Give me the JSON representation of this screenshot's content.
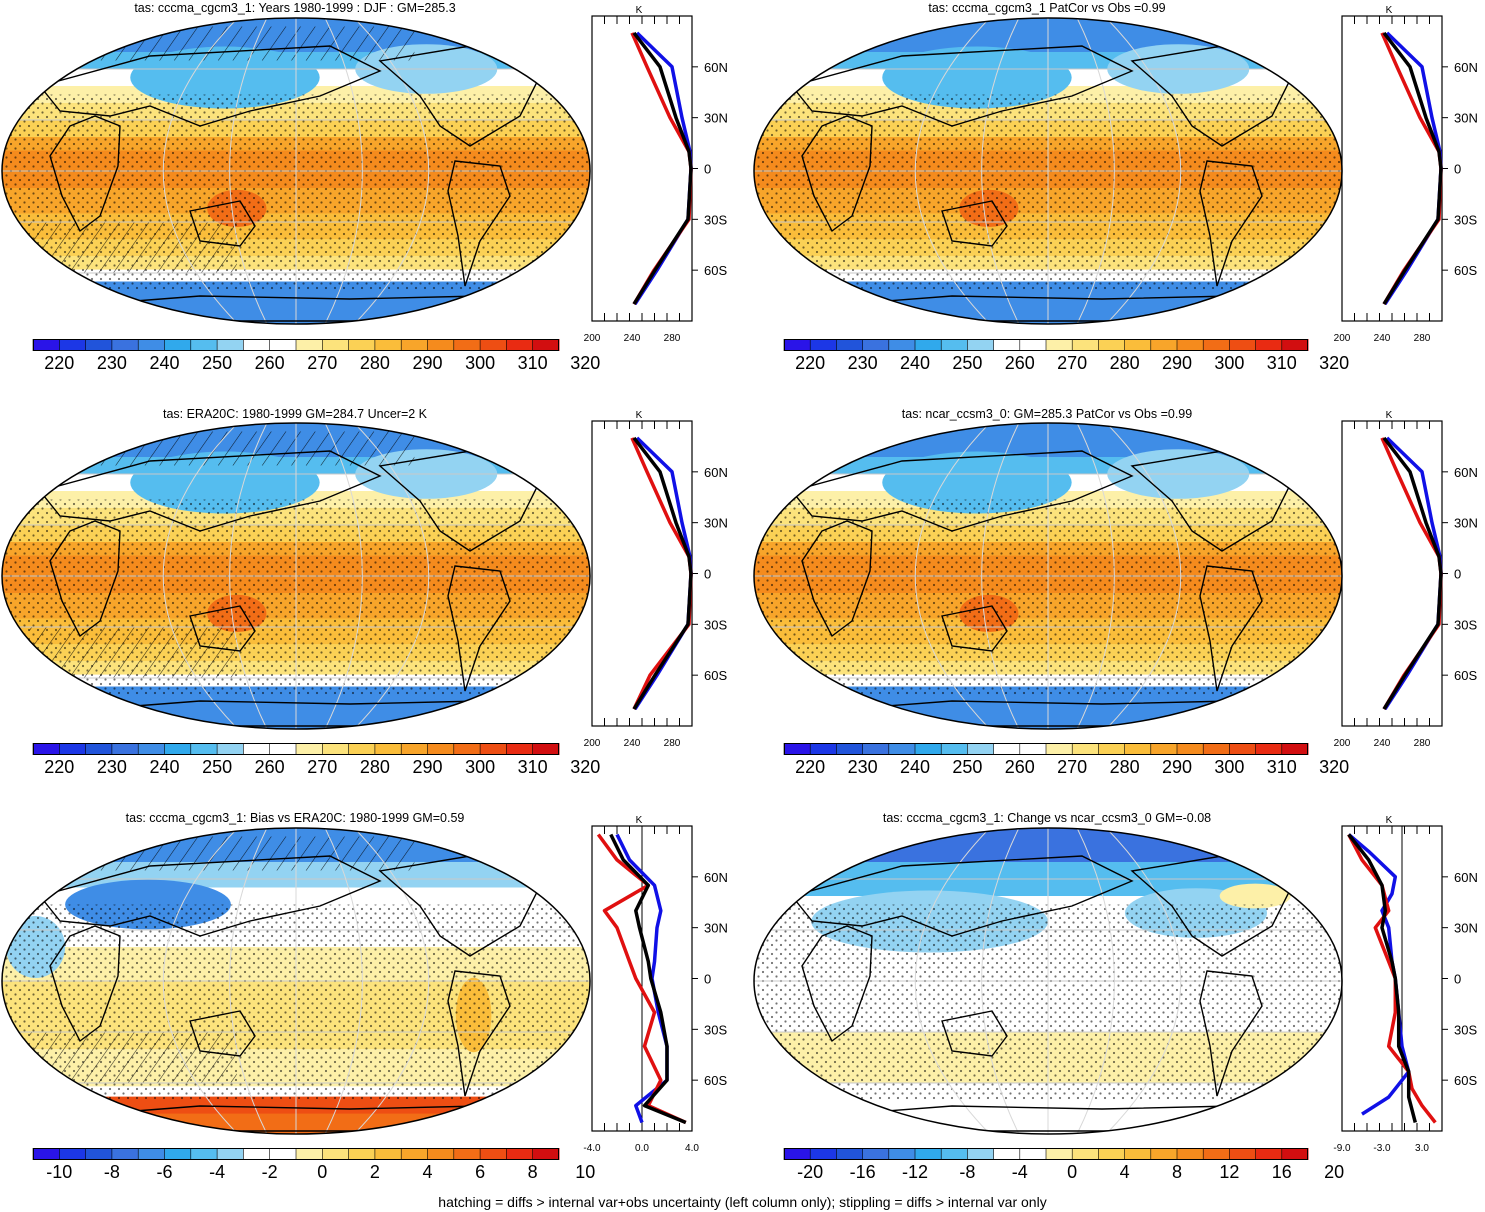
{
  "footer": "hatching = diffs > internal var+obs uncertainty (left column only); stippling = diffs > internal var only",
  "colors": {
    "abs_scale": [
      "#2a14e8",
      "#1c37e6",
      "#2154da",
      "#3a72df",
      "#3f8de6",
      "#30a9ec",
      "#55bdef",
      "#93d3f2",
      "#ffffff",
      "#ffffff",
      "#fdf0a8",
      "#fce37c",
      "#fbd155",
      "#fabd3a",
      "#f8a52a",
      "#f58b1d",
      "#f26d16",
      "#ee4e13",
      "#e92b12",
      "#d20e10"
    ],
    "bias_scale": [
      "#2a14e8",
      "#1c37e6",
      "#2154da",
      "#3a72df",
      "#3f8de6",
      "#30a9ec",
      "#55bdef",
      "#93d3f2",
      "#ffffff",
      "#ffffff",
      "#fdf0a8",
      "#fce37c",
      "#fbd155",
      "#fabd3a",
      "#f8a52a",
      "#f58b1d",
      "#f26d16",
      "#ee4e13",
      "#e92b12",
      "#d20e10"
    ],
    "model_line": "#e01010",
    "obs_line": "#1010e6",
    "mean_line": "#000000"
  },
  "panels": [
    {
      "title": "tas: cccma_cgcm3_1: Years 1980-1999 : DJF : GM=285.3",
      "colorbar_labels": [
        "220",
        "230",
        "240",
        "250",
        "260",
        "270",
        "280",
        "290",
        "300",
        "310",
        "320"
      ],
      "zonal": {
        "unit": "K",
        "xticks": [
          "200",
          "240",
          "280"
        ],
        "xrange": [
          200,
          300
        ],
        "lat_labels": [
          "60N",
          "30N",
          "0",
          "30S",
          "60S"
        ],
        "lines": {
          "red": [
            [
              80,
              240
            ],
            [
              60,
              255
            ],
            [
              30,
              278
            ],
            [
              10,
              297
            ],
            [
              0,
              299
            ],
            [
              -30,
              297
            ],
            [
              -60,
              262
            ],
            [
              -80,
              242
            ]
          ],
          "blue": [
            [
              80,
              245
            ],
            [
              60,
              280
            ],
            [
              30,
              290
            ],
            [
              10,
              298
            ],
            [
              0,
              299
            ],
            [
              -30,
              296
            ],
            [
              -60,
              265
            ],
            [
              -80,
              243
            ]
          ],
          "black": [
            [
              80,
              242
            ],
            [
              60,
              268
            ],
            [
              30,
              284
            ],
            [
              10,
              297
            ],
            [
              0,
              299
            ],
            [
              -30,
              296
            ],
            [
              -60,
              263
            ],
            [
              -80,
              242
            ]
          ]
        }
      }
    },
    {
      "title": "tas: cccma_cgcm3_1 PatCor vs Obs =0.99",
      "colorbar_labels": [
        "220",
        "230",
        "240",
        "250",
        "260",
        "270",
        "280",
        "290",
        "300",
        "310",
        "320"
      ],
      "zonal": {
        "unit": "K",
        "xticks": [
          "200",
          "240",
          "280"
        ],
        "xrange": [
          200,
          300
        ],
        "lat_labels": [
          "60N",
          "30N",
          "0",
          "30S",
          "60S"
        ],
        "lines": {
          "red": [
            [
              80,
              240
            ],
            [
              60,
              255
            ],
            [
              30,
              278
            ],
            [
              10,
              297
            ],
            [
              0,
              299
            ],
            [
              -30,
              297
            ],
            [
              -60,
              262
            ],
            [
              -80,
              242
            ]
          ],
          "blue": [
            [
              80,
              245
            ],
            [
              60,
              280
            ],
            [
              30,
              290
            ],
            [
              10,
              298
            ],
            [
              0,
              299
            ],
            [
              -30,
              296
            ],
            [
              -60,
              265
            ],
            [
              -80,
              243
            ]
          ],
          "black": [
            [
              80,
              242
            ],
            [
              60,
              268
            ],
            [
              30,
              284
            ],
            [
              10,
              297
            ],
            [
              0,
              299
            ],
            [
              -30,
              296
            ],
            [
              -60,
              263
            ],
            [
              -80,
              242
            ]
          ]
        }
      }
    },
    {
      "title": "tas: ERA20C: 1980-1999 GM=284.7 Uncer=2 K",
      "colorbar_labels": [
        "220",
        "230",
        "240",
        "250",
        "260",
        "270",
        "280",
        "290",
        "300",
        "310",
        "320"
      ],
      "zonal": {
        "unit": "K",
        "xticks": [
          "200",
          "240",
          "280"
        ],
        "xrange": [
          200,
          300
        ],
        "lat_labels": [
          "60N",
          "30N",
          "0",
          "30S",
          "60S"
        ],
        "lines": {
          "red": [
            [
              80,
              240
            ],
            [
              60,
              255
            ],
            [
              30,
              278
            ],
            [
              10,
              297
            ],
            [
              0,
              299
            ],
            [
              -30,
              297
            ],
            [
              -60,
              258
            ],
            [
              -80,
              242
            ]
          ],
          "blue": [
            [
              80,
              245
            ],
            [
              60,
              280
            ],
            [
              30,
              290
            ],
            [
              10,
              298
            ],
            [
              0,
              299
            ],
            [
              -30,
              296
            ],
            [
              -60,
              265
            ],
            [
              -80,
              243
            ]
          ],
          "black": [
            [
              80,
              242
            ],
            [
              60,
              268
            ],
            [
              30,
              284
            ],
            [
              10,
              297
            ],
            [
              0,
              299
            ],
            [
              -30,
              296
            ],
            [
              -60,
              263
            ],
            [
              -80,
              242
            ]
          ]
        }
      }
    },
    {
      "title": "tas: ncar_ccsm3_0: GM=285.3 PatCor vs Obs =0.99",
      "colorbar_labels": [
        "220",
        "230",
        "240",
        "250",
        "260",
        "270",
        "280",
        "290",
        "300",
        "310",
        "320"
      ],
      "zonal": {
        "unit": "K",
        "xticks": [
          "200",
          "240",
          "280"
        ],
        "xrange": [
          200,
          300
        ],
        "lat_labels": [
          "60N",
          "30N",
          "0",
          "30S",
          "60S"
        ],
        "lines": {
          "red": [
            [
              80,
              240
            ],
            [
              60,
              255
            ],
            [
              30,
              278
            ],
            [
              10,
              297
            ],
            [
              0,
              299
            ],
            [
              -30,
              297
            ],
            [
              -60,
              262
            ],
            [
              -80,
              242
            ]
          ],
          "blue": [
            [
              80,
              245
            ],
            [
              60,
              280
            ],
            [
              30,
              290
            ],
            [
              10,
              298
            ],
            [
              0,
              299
            ],
            [
              -30,
              296
            ],
            [
              -60,
              265
            ],
            [
              -80,
              243
            ]
          ],
          "black": [
            [
              80,
              242
            ],
            [
              60,
              268
            ],
            [
              30,
              284
            ],
            [
              10,
              297
            ],
            [
              0,
              299
            ],
            [
              -30,
              296
            ],
            [
              -60,
              263
            ],
            [
              -80,
              242
            ]
          ]
        }
      }
    },
    {
      "title": "tas: cccma_cgcm3_1: Bias vs ERA20C: 1980-1999 GM=0.59",
      "colorbar_labels": [
        "-10",
        "-8",
        "-6",
        "-4",
        "-2",
        "0",
        "2",
        "4",
        "6",
        "8",
        "10"
      ],
      "zonal": {
        "unit": "K",
        "xticks": [
          "-4.0",
          "0.0",
          "4.0"
        ],
        "xrange": [
          -4,
          4
        ],
        "lat_labels": [
          "60N",
          "30N",
          "0",
          "30S",
          "60S"
        ],
        "lines": {
          "red": [
            [
              85,
              -3.5
            ],
            [
              70,
              -2
            ],
            [
              55,
              0.5
            ],
            [
              40,
              -3
            ],
            [
              30,
              -2
            ],
            [
              10,
              -1
            ],
            [
              0,
              -0.5
            ],
            [
              -20,
              1
            ],
            [
              -40,
              0.2
            ],
            [
              -60,
              1.5
            ],
            [
              -75,
              0.5
            ],
            [
              -85,
              3.5
            ]
          ],
          "blue": [
            [
              85,
              -2
            ],
            [
              70,
              -1
            ],
            [
              55,
              1
            ],
            [
              40,
              1.5
            ],
            [
              30,
              1.2
            ],
            [
              10,
              1
            ],
            [
              0,
              0.8
            ],
            [
              -20,
              1.3
            ],
            [
              -40,
              2
            ],
            [
              -60,
              2
            ],
            [
              -75,
              -0.5
            ],
            [
              -85,
              0
            ]
          ],
          "black": [
            [
              85,
              -2.5
            ],
            [
              70,
              -1.5
            ],
            [
              55,
              0.5
            ],
            [
              40,
              -0.5
            ],
            [
              30,
              -0.2
            ],
            [
              10,
              0.5
            ],
            [
              0,
              0.7
            ],
            [
              -20,
              1.5
            ],
            [
              -40,
              2
            ],
            [
              -60,
              2
            ],
            [
              -75,
              0.2
            ],
            [
              -85,
              3.5
            ]
          ]
        }
      }
    },
    {
      "title": "tas: cccma_cgcm3_1: Change vs ncar_ccsm3_0 GM=-0.08",
      "colorbar_labels": [
        "-20",
        "-16",
        "-12",
        "-8",
        "-4",
        "0",
        "4",
        "8",
        "12",
        "16",
        "20"
      ],
      "zonal": {
        "unit": "K",
        "xticks": [
          "-9.0",
          "-3.0",
          "3.0"
        ],
        "xrange": [
          -9,
          6
        ],
        "lat_labels": [
          "60N",
          "30N",
          "0",
          "30S",
          "60S"
        ],
        "lines": {
          "red": [
            [
              85,
              -8
            ],
            [
              70,
              -6
            ],
            [
              55,
              -3
            ],
            [
              40,
              -2
            ],
            [
              30,
              -4
            ],
            [
              10,
              -2
            ],
            [
              0,
              -1
            ],
            [
              -20,
              -1
            ],
            [
              -40,
              -2
            ],
            [
              -55,
              1
            ],
            [
              -65,
              1.5
            ],
            [
              -75,
              3
            ],
            [
              -85,
              5
            ]
          ],
          "blue": [
            [
              85,
              -8
            ],
            [
              75,
              -5
            ],
            [
              60,
              -1
            ],
            [
              50,
              -1.5
            ],
            [
              40,
              -3
            ],
            [
              30,
              -2
            ],
            [
              10,
              -1.5
            ],
            [
              0,
              -1
            ],
            [
              -20,
              -0.5
            ],
            [
              -40,
              0
            ],
            [
              -55,
              1
            ],
            [
              -70,
              -2
            ],
            [
              -80,
              -6
            ]
          ],
          "black": [
            [
              85,
              -8
            ],
            [
              70,
              -5
            ],
            [
              55,
              -3
            ],
            [
              40,
              -2.5
            ],
            [
              30,
              -3
            ],
            [
              10,
              -1.5
            ],
            [
              0,
              -1
            ],
            [
              -20,
              -0.5
            ],
            [
              -40,
              -0.5
            ],
            [
              -55,
              1
            ],
            [
              -70,
              1
            ],
            [
              -85,
              2
            ]
          ]
        }
      }
    }
  ]
}
